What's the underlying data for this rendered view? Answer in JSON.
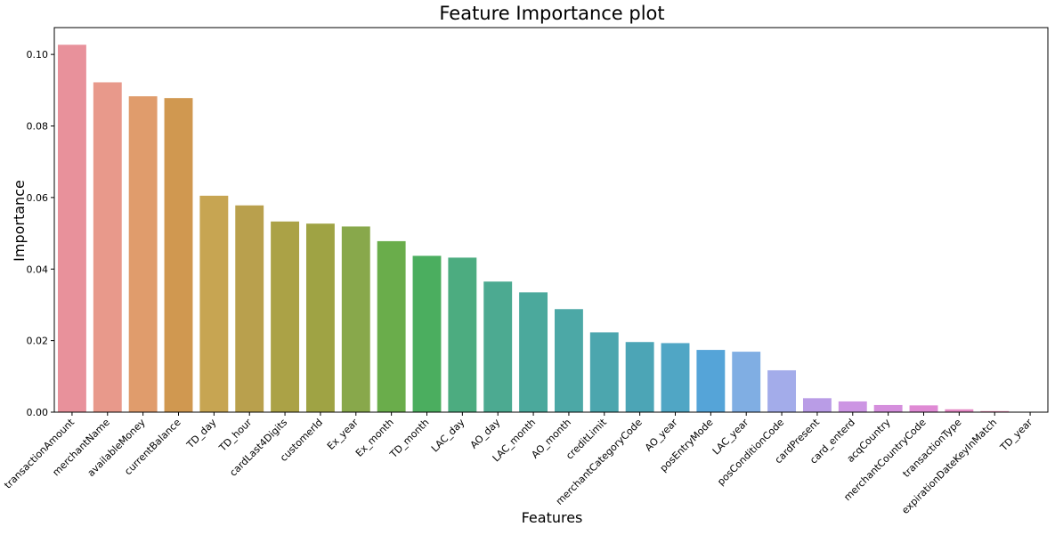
{
  "chart_data": {
    "type": "bar",
    "title": "Feature Importance plot",
    "xlabel": "Features",
    "ylabel": "Importance",
    "ylim": [
      0,
      0.1075
    ],
    "yticks": [
      "0.00",
      "0.02",
      "0.04",
      "0.06",
      "0.08",
      "0.10"
    ],
    "ytick_values": [
      0,
      0.02,
      0.04,
      0.06,
      0.08,
      0.1
    ],
    "grid": false,
    "categories": [
      "transactionAmount",
      "merchantName",
      "availableMoney",
      "currentBalance",
      "TD_day",
      "TD_hour",
      "cardLast4Digits",
      "customerId",
      "Ex_year",
      "Ex_month",
      "TD_month",
      "LAC_day",
      "AO_day",
      "LAC_month",
      "AO_month",
      "creditLimit",
      "merchantCategoryCode",
      "AO_year",
      "posEntryMode",
      "LAC_year",
      "posConditionCode",
      "cardPresent",
      "card_enterd",
      "acqCountry",
      "merchantCountryCode",
      "transactionType",
      "expirationDateKeyInMatch",
      "TD_year"
    ],
    "values": [
      0.1027,
      0.0922,
      0.0883,
      0.0878,
      0.0605,
      0.0578,
      0.0533,
      0.0527,
      0.0519,
      0.0478,
      0.0437,
      0.0432,
      0.0365,
      0.0335,
      0.0288,
      0.0223,
      0.0196,
      0.0193,
      0.0174,
      0.0169,
      0.0117,
      0.0039,
      0.003,
      0.002,
      0.0019,
      0.0008,
      0.0003,
      0.0
    ],
    "colors": [
      "#e8919b",
      "#e8998b",
      "#e09c6c",
      "#d09850",
      "#c7a552",
      "#b9a04d",
      "#aba246",
      "#9fa344",
      "#88a84b",
      "#6aad4b",
      "#4bae5f",
      "#4cac80",
      "#4caa91",
      "#4ba99c",
      "#4ca8a6",
      "#4ca6ae",
      "#4ca5b6",
      "#50a6c5",
      "#55a4d8",
      "#80aee3",
      "#a3acea",
      "#b99ce6",
      "#cc95e3",
      "#d58fdd",
      "#df8ad4",
      "#e58bc6",
      "#e88db4",
      "#e890a6"
    ]
  }
}
